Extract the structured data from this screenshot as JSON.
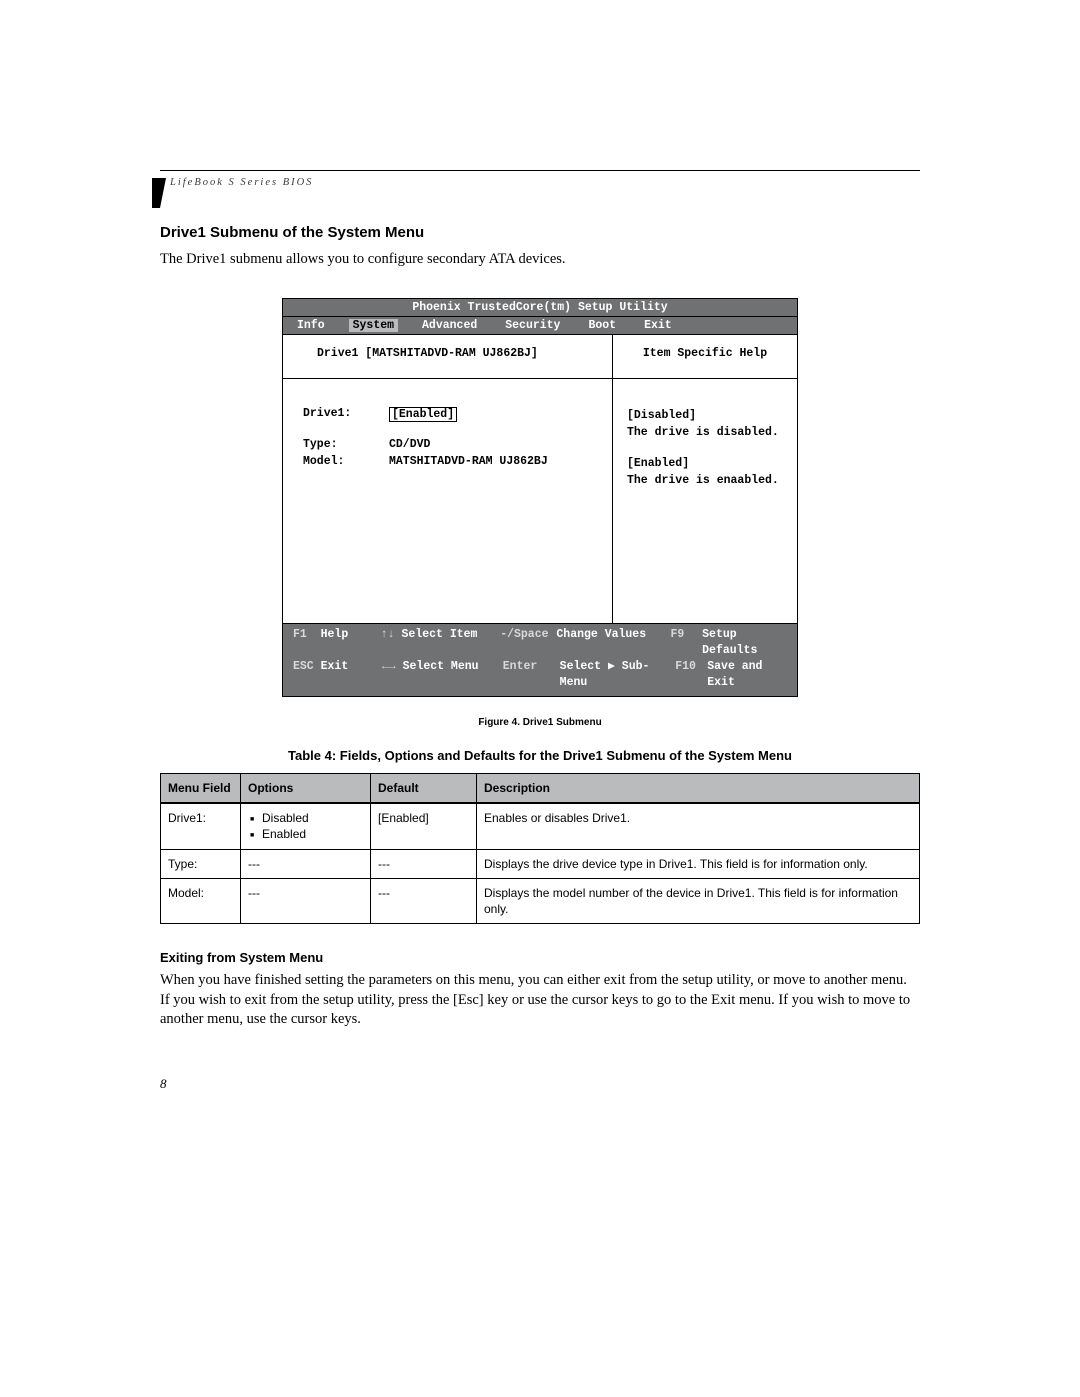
{
  "running_head": "LifeBook S Series BIOS",
  "section_title": "Drive1 Submenu of the System Menu",
  "intro": "The Drive1 submenu allows you to configure secondary ATA devices.",
  "bios": {
    "title": "Phoenix TrustedCore(tm) Setup Utility",
    "menu": {
      "items": [
        "Info",
        "System",
        "Advanced",
        "Security",
        "Boot",
        "Exit"
      ],
      "selected": "System"
    },
    "subheader_left": "Drive1 [MATSHITADVD-RAM UJ862BJ]",
    "subheader_right": "Item Specific Help",
    "fields": {
      "drive1_label": "Drive1:",
      "drive1_value": "[Enabled]",
      "type_label": "Type:",
      "type_value": "CD/DVD",
      "model_label": "Model:",
      "model_value": "MATSHITADVD-RAM UJ862BJ"
    },
    "help": {
      "disabled_hdr": "[Disabled]",
      "disabled_txt": "The drive is disabled.",
      "enabled_hdr": "[Enabled]",
      "enabled_txt": "The drive is enaabled."
    },
    "footer": {
      "f1": "F1",
      "help": "Help",
      "updn": "↑↓",
      "select_item": "Select Item",
      "minus_space": "-/Space",
      "change_values": "Change Values",
      "f9": "F9",
      "setup_defaults": "Setup Defaults",
      "esc": "ESC",
      "exit": "Exit",
      "lr": "←→",
      "select_menu": "Select Menu",
      "enter": "Enter",
      "select_sub": "Select ▶ Sub-Menu",
      "f10": "F10",
      "save_exit": "Save and Exit"
    }
  },
  "figure_caption": "Figure 4.  Drive1 Submenu",
  "table_caption": "Table 4: Fields, Options and Defaults for the Drive1 Submenu of the System Menu",
  "table": {
    "headers": [
      "Menu Field",
      "Options",
      "Default",
      "Description"
    ],
    "rows": [
      {
        "field": "Drive1:",
        "options": [
          "Disabled",
          "Enabled"
        ],
        "default": "[Enabled]",
        "desc": "Enables or disables Drive1."
      },
      {
        "field": "Type:",
        "options": [],
        "default": "---",
        "desc": "Displays the drive device type in Drive1. This field is for information only."
      },
      {
        "field": "Model:",
        "options": [],
        "default": "---",
        "desc": "Displays the model number of the device in Drive1. This field is for information only."
      }
    ]
  },
  "exit_title": "Exiting from System Menu",
  "exit_body": "When you have finished setting the parameters on this menu, you can either exit from the setup utility, or move to another menu. If you wish to exit from the setup utility, press the [Esc] key or use the cursor keys to go to the Exit menu. If you wish to move to another menu, use the cursor keys.",
  "page_number": "8"
}
